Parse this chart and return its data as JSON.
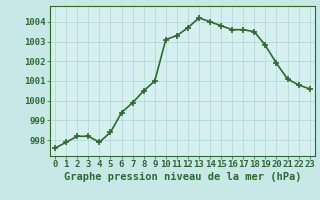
{
  "x": [
    0,
    1,
    2,
    3,
    4,
    5,
    6,
    7,
    8,
    9,
    10,
    11,
    12,
    13,
    14,
    15,
    16,
    17,
    18,
    19,
    20,
    21,
    22,
    23
  ],
  "y": [
    997.6,
    997.9,
    998.2,
    998.2,
    997.9,
    998.4,
    999.4,
    999.9,
    1000.5,
    1001.0,
    1003.1,
    1003.3,
    1003.7,
    1004.2,
    1004.0,
    1003.8,
    1003.6,
    1003.6,
    1003.5,
    1002.8,
    1001.9,
    1001.1,
    1000.8,
    1000.6
  ],
  "line_color": "#2d6a2d",
  "marker": "+",
  "marker_size": 4,
  "bg_color": "#c8e8e8",
  "plot_bg_color": "#d6f0f0",
  "grid_color": "#b0d4d4",
  "xlabel": "Graphe pression niveau de la mer (hPa)",
  "xlabel_fontsize": 7.5,
  "ylabel_ticks": [
    998,
    999,
    1000,
    1001,
    1002,
    1003,
    1004
  ],
  "xlim": [
    -0.5,
    23.5
  ],
  "ylim": [
    997.2,
    1004.8
  ],
  "tick_fontsize": 6.5,
  "spine_color": "#2d6a2d",
  "line_width": 1.2,
  "marker_edge_width": 1.2
}
